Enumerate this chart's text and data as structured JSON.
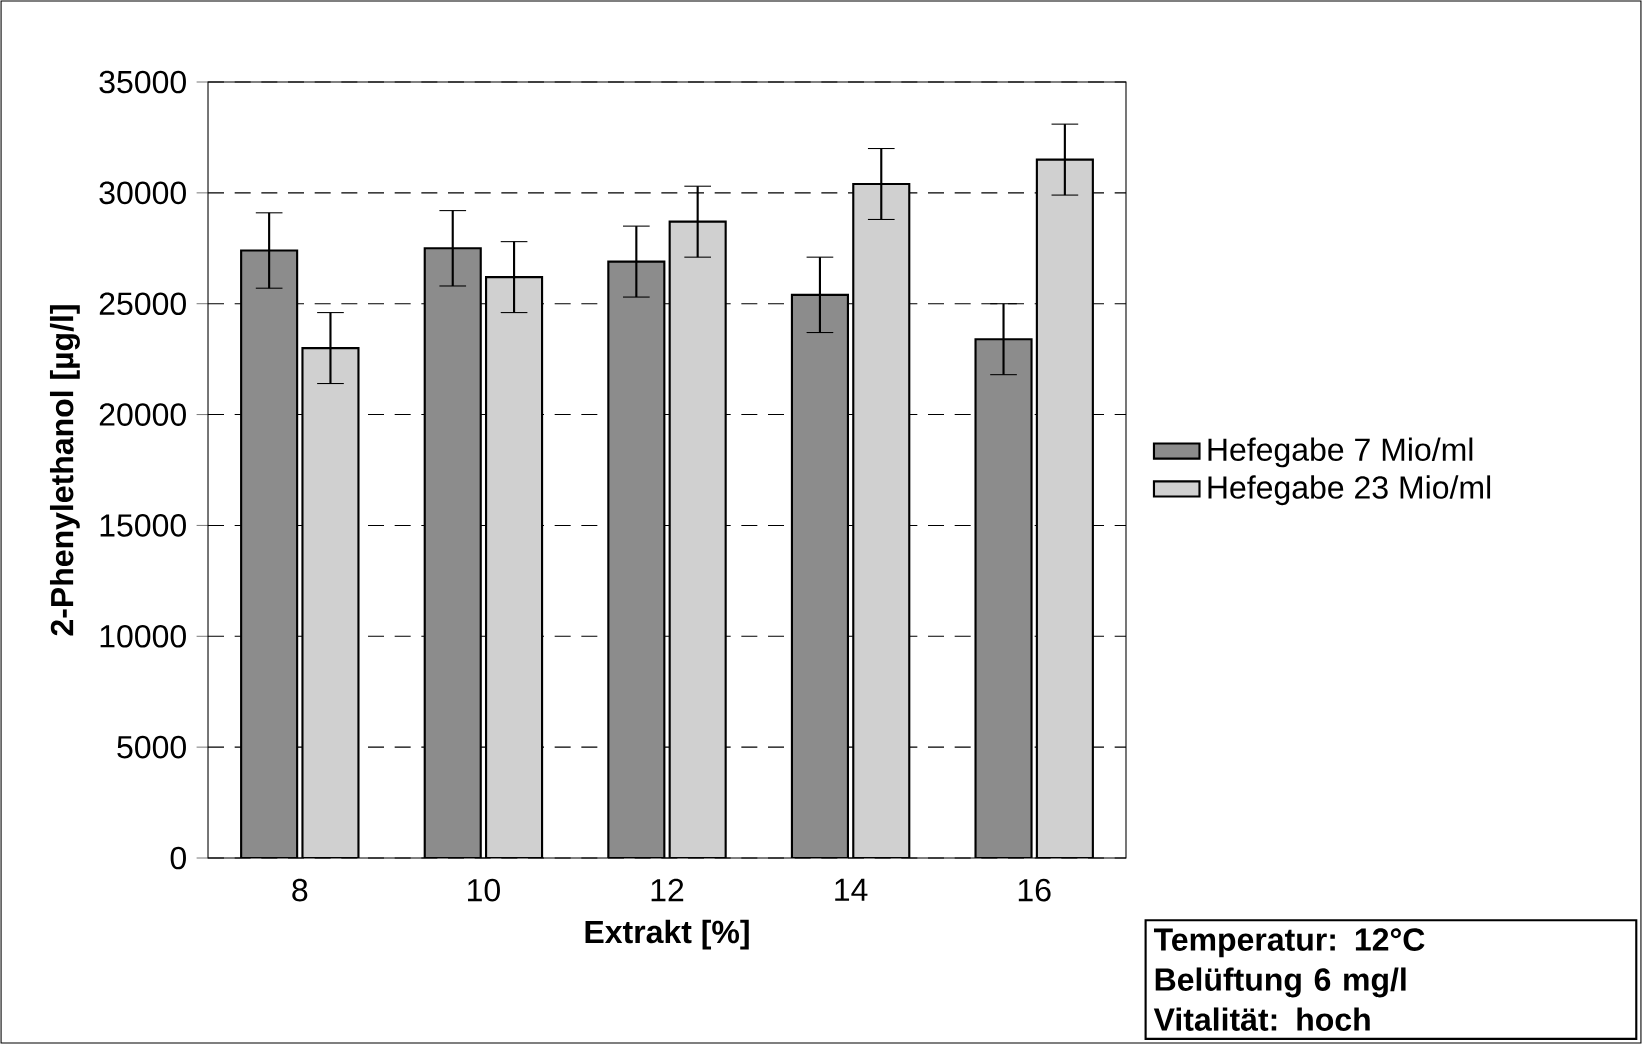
{
  "chart_data": {
    "type": "bar",
    "xlabel": "Extrakt [%]",
    "ylabel": "2-Phenylethanol [µg/l]",
    "categories": [
      "8",
      "10",
      "12",
      "14",
      "16"
    ],
    "series": [
      {
        "name": "Hefegabe 7 Mio/ml",
        "color": "#8c8c8c",
        "values": [
          27400,
          27500,
          26900,
          25400,
          23400
        ],
        "errors": [
          1700,
          1700,
          1600,
          1700,
          1600
        ]
      },
      {
        "name": "Hefegabe 23 Mio/ml",
        "color": "#d0d0d0",
        "values": [
          23000,
          26200,
          28700,
          30400,
          31500
        ],
        "errors": [
          1600,
          1600,
          1600,
          1600,
          1600
        ]
      }
    ],
    "ylim": [
      0,
      35000
    ],
    "yticks": [
      0,
      5000,
      10000,
      15000,
      20000,
      25000,
      30000,
      35000
    ],
    "grid": "y",
    "line_style": "dashed",
    "legend": "right",
    "annotations": [
      "Temperatur: 12°C",
      "Belüftung 6 mg/l",
      "Vitalität: hoch"
    ]
  }
}
